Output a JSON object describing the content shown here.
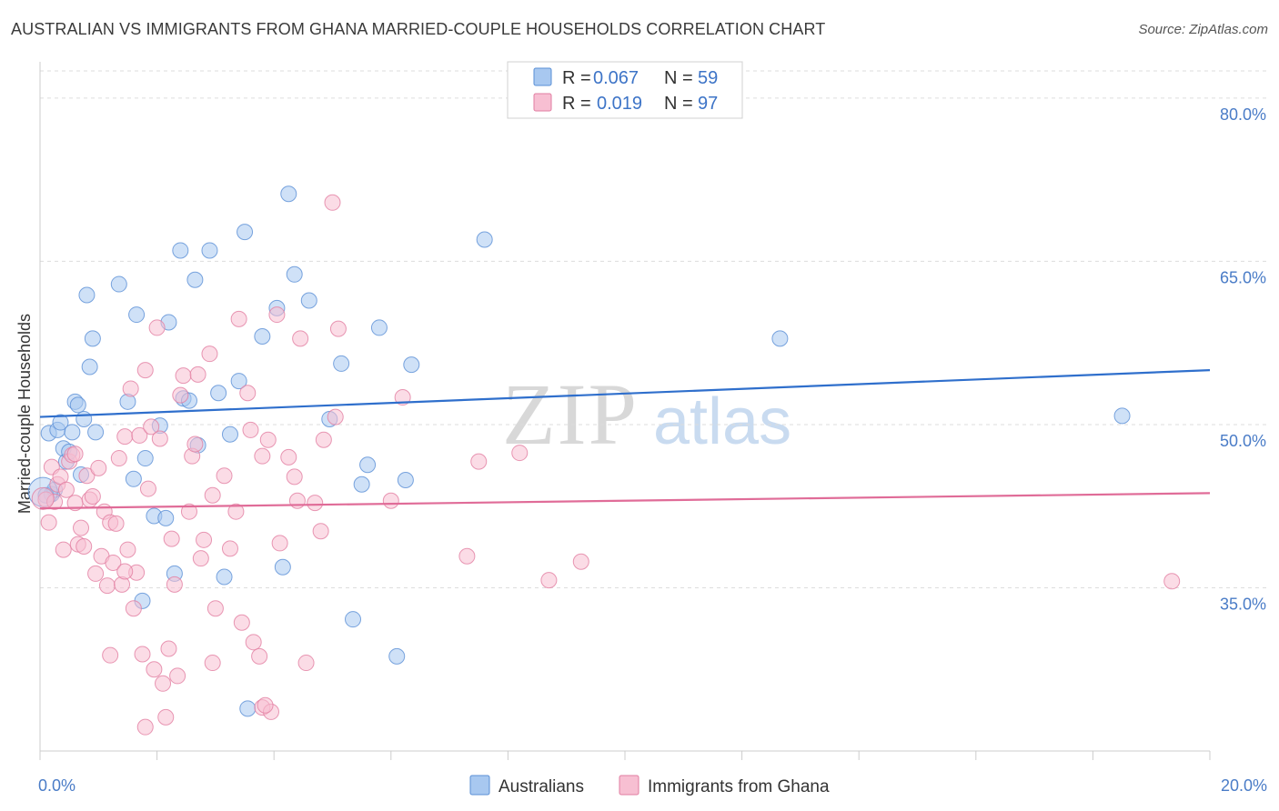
{
  "title": "AUSTRALIAN VS IMMIGRANTS FROM GHANA MARRIED-COUPLE HOUSEHOLDS CORRELATION CHART",
  "source": "Source: ZipAtlas.com",
  "watermark": {
    "zip": "ZIP",
    "atlas": "atlas"
  },
  "chart_data": {
    "type": "scatter",
    "xlabel": "",
    "ylabel": "Married-couple Households",
    "xlim": [
      0,
      20
    ],
    "ylim": [
      20,
      83
    ],
    "x_tick_labels": [
      {
        "value": 0,
        "label": "0.0%"
      },
      {
        "value": 20,
        "label": "20.0%"
      }
    ],
    "y_tick_labels": [
      {
        "value": 35,
        "label": "35.0%"
      },
      {
        "value": 50,
        "label": "50.0%"
      },
      {
        "value": 65,
        "label": "65.0%"
      },
      {
        "value": 80,
        "label": "80.0%"
      }
    ],
    "legend_stats": [
      {
        "r_label": "R =",
        "r_value": "0.067",
        "n_label": "N =",
        "n_value": "59"
      },
      {
        "r_label": "R =",
        "r_value": "0.019",
        "n_label": "N =",
        "n_value": "97"
      }
    ],
    "series": [
      {
        "name": "Australians",
        "fill": "#a8c8f0",
        "stroke": "#5a8fd6",
        "line_color": "#2f6fcc",
        "trend": {
          "x0": 0,
          "y0": 50.7,
          "x1": 20,
          "y1": 55.0
        },
        "points": [
          [
            0.15,
            49.2
          ],
          [
            0.2,
            43.6
          ],
          [
            0.25,
            44.0
          ],
          [
            0.3,
            49.5
          ],
          [
            0.35,
            50.2
          ],
          [
            0.4,
            47.8
          ],
          [
            0.45,
            46.6
          ],
          [
            0.5,
            47.5
          ],
          [
            0.55,
            49.3
          ],
          [
            0.6,
            52.1
          ],
          [
            0.65,
            51.8
          ],
          [
            0.7,
            45.4
          ],
          [
            0.75,
            50.5
          ],
          [
            0.8,
            61.9
          ],
          [
            0.85,
            55.3
          ],
          [
            0.9,
            57.9
          ],
          [
            0.95,
            49.3
          ],
          [
            1.35,
            62.9
          ],
          [
            1.5,
            52.1
          ],
          [
            1.6,
            45.0
          ],
          [
            1.65,
            60.1
          ],
          [
            1.75,
            33.8
          ],
          [
            1.8,
            46.9
          ],
          [
            1.95,
            41.6
          ],
          [
            2.05,
            49.9
          ],
          [
            2.15,
            41.4
          ],
          [
            2.2,
            59.4
          ],
          [
            2.3,
            36.3
          ],
          [
            2.4,
            66.0
          ],
          [
            2.45,
            52.4
          ],
          [
            2.55,
            52.2
          ],
          [
            2.65,
            63.3
          ],
          [
            2.7,
            48.1
          ],
          [
            2.9,
            66.0
          ],
          [
            3.05,
            52.9
          ],
          [
            3.15,
            36.0
          ],
          [
            3.25,
            49.1
          ],
          [
            3.4,
            54.0
          ],
          [
            3.5,
            67.7
          ],
          [
            3.55,
            23.9
          ],
          [
            3.8,
            58.1
          ],
          [
            4.05,
            60.7
          ],
          [
            4.15,
            36.9
          ],
          [
            4.25,
            71.2
          ],
          [
            4.35,
            63.8
          ],
          [
            4.6,
            61.4
          ],
          [
            4.95,
            50.5
          ],
          [
            5.15,
            55.6
          ],
          [
            5.35,
            32.1
          ],
          [
            5.5,
            44.5
          ],
          [
            5.6,
            46.3
          ],
          [
            5.8,
            58.9
          ],
          [
            6.1,
            28.7
          ],
          [
            6.25,
            44.9
          ],
          [
            6.35,
            55.5
          ],
          [
            7.6,
            67.0
          ],
          [
            12.65,
            57.9
          ],
          [
            18.5,
            50.8
          ],
          [
            0.1,
            43.5
          ]
        ]
      },
      {
        "name": "Immigrants from Ghana",
        "fill": "#f7bfd2",
        "stroke": "#e27ea1",
        "line_color": "#e06c98",
        "trend": {
          "x0": 0,
          "y0": 42.3,
          "x1": 20,
          "y1": 43.7
        },
        "points": [
          [
            0.1,
            43.1
          ],
          [
            0.15,
            41.0
          ],
          [
            0.2,
            46.1
          ],
          [
            0.25,
            42.9
          ],
          [
            0.3,
            44.5
          ],
          [
            0.35,
            45.2
          ],
          [
            0.4,
            38.5
          ],
          [
            0.45,
            44.0
          ],
          [
            0.5,
            46.6
          ],
          [
            0.55,
            47.2
          ],
          [
            0.6,
            42.8
          ],
          [
            0.65,
            39.0
          ],
          [
            0.7,
            40.5
          ],
          [
            0.75,
            38.8
          ],
          [
            0.8,
            45.3
          ],
          [
            0.85,
            43.1
          ],
          [
            0.9,
            43.4
          ],
          [
            0.95,
            36.3
          ],
          [
            1.0,
            46.0
          ],
          [
            1.05,
            37.9
          ],
          [
            1.1,
            42.0
          ],
          [
            1.15,
            35.2
          ],
          [
            1.2,
            41.0
          ],
          [
            1.25,
            37.3
          ],
          [
            1.3,
            40.9
          ],
          [
            1.35,
            46.9
          ],
          [
            1.4,
            35.3
          ],
          [
            1.45,
            48.9
          ],
          [
            1.5,
            38.5
          ],
          [
            1.55,
            53.3
          ],
          [
            1.6,
            33.1
          ],
          [
            1.65,
            36.4
          ],
          [
            1.7,
            49.0
          ],
          [
            1.75,
            28.9
          ],
          [
            1.8,
            55.0
          ],
          [
            1.85,
            44.1
          ],
          [
            1.9,
            49.8
          ],
          [
            1.95,
            27.5
          ],
          [
            2.0,
            58.9
          ],
          [
            2.05,
            48.7
          ],
          [
            2.1,
            26.2
          ],
          [
            2.15,
            23.1
          ],
          [
            2.2,
            29.4
          ],
          [
            2.25,
            39.5
          ],
          [
            2.3,
            35.3
          ],
          [
            2.35,
            26.9
          ],
          [
            2.4,
            52.7
          ],
          [
            2.45,
            54.5
          ],
          [
            2.55,
            42.0
          ],
          [
            2.6,
            47.1
          ],
          [
            2.65,
            48.2
          ],
          [
            2.7,
            54.6
          ],
          [
            2.75,
            37.7
          ],
          [
            2.8,
            39.4
          ],
          [
            2.9,
            56.5
          ],
          [
            2.95,
            28.1
          ],
          [
            3.0,
            33.1
          ],
          [
            3.15,
            45.3
          ],
          [
            3.25,
            38.6
          ],
          [
            3.35,
            42.0
          ],
          [
            3.4,
            59.7
          ],
          [
            3.45,
            31.8
          ],
          [
            3.55,
            52.9
          ],
          [
            3.6,
            49.5
          ],
          [
            3.65,
            30.0
          ],
          [
            3.75,
            28.7
          ],
          [
            3.8,
            24.0
          ],
          [
            3.9,
            48.6
          ],
          [
            3.95,
            23.6
          ],
          [
            4.05,
            60.1
          ],
          [
            4.1,
            39.1
          ],
          [
            4.25,
            47.0
          ],
          [
            4.35,
            45.2
          ],
          [
            4.45,
            57.9
          ],
          [
            4.55,
            28.1
          ],
          [
            4.7,
            42.8
          ],
          [
            4.8,
            40.2
          ],
          [
            4.85,
            48.6
          ],
          [
            5.0,
            70.4
          ],
          [
            5.05,
            50.7
          ],
          [
            5.1,
            58.8
          ],
          [
            6.0,
            43.0
          ],
          [
            6.2,
            52.5
          ],
          [
            7.3,
            37.9
          ],
          [
            7.5,
            46.6
          ],
          [
            8.2,
            47.4
          ],
          [
            8.7,
            35.7
          ],
          [
            9.25,
            37.4
          ],
          [
            19.35,
            35.6
          ],
          [
            1.8,
            22.2
          ],
          [
            3.85,
            24.2
          ],
          [
            0.6,
            47.3
          ],
          [
            2.95,
            43.5
          ],
          [
            3.8,
            47.1
          ],
          [
            1.45,
            36.5
          ],
          [
            1.2,
            28.8
          ],
          [
            4.4,
            43.0
          ]
        ]
      }
    ]
  },
  "bottom_legend": [
    {
      "label": "Australians"
    },
    {
      "label": "Immigrants from Ghana"
    }
  ]
}
